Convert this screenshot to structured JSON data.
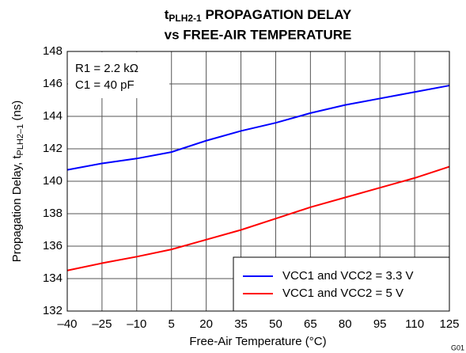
{
  "chart_data": {
    "type": "line",
    "title": {
      "line1": [
        "t",
        "PLH2-1",
        " PROPAGATION DELAY"
      ],
      "line2": "vs FREE-AIR TEMPERATURE"
    },
    "xlabel": "Free-Air Temperature (°C)",
    "ylabel": [
      "Propagation Delay, t",
      "PLH2–1",
      " (ns)"
    ],
    "annotations": [
      "R1 = 2.2 kΩ",
      "C1 = 40 pF",
      "G01"
    ],
    "x": [
      -40,
      -25,
      -10,
      5,
      20,
      35,
      50,
      65,
      80,
      95,
      110,
      125
    ],
    "series": [
      {
        "name": "VCC1 and VCC2 = 3.3 V",
        "color": "#0000ff",
        "values": [
          140.7,
          141.1,
          141.4,
          141.8,
          142.5,
          143.1,
          143.6,
          144.2,
          144.7,
          145.1,
          145.5,
          145.9
        ]
      },
      {
        "name": "VCC1 and VCC2 = 5 V",
        "color": "#ff0000",
        "values": [
          134.5,
          134.95,
          135.35,
          135.8,
          136.4,
          137.0,
          137.7,
          138.4,
          139.0,
          139.6,
          140.2,
          140.9
        ]
      }
    ],
    "xlim": [
      -40,
      125
    ],
    "xticks": [
      {
        "value": -40,
        "label": "–40"
      },
      {
        "value": -25,
        "label": "–25"
      },
      {
        "value": -10,
        "label": "–10"
      },
      5,
      20,
      35,
      50,
      65,
      80,
      95,
      110,
      125
    ],
    "ylim": [
      132,
      148
    ],
    "yticks": [
      132,
      134,
      136,
      138,
      140,
      142,
      144,
      146,
      148
    ],
    "grid": true,
    "legend": "lower right"
  }
}
